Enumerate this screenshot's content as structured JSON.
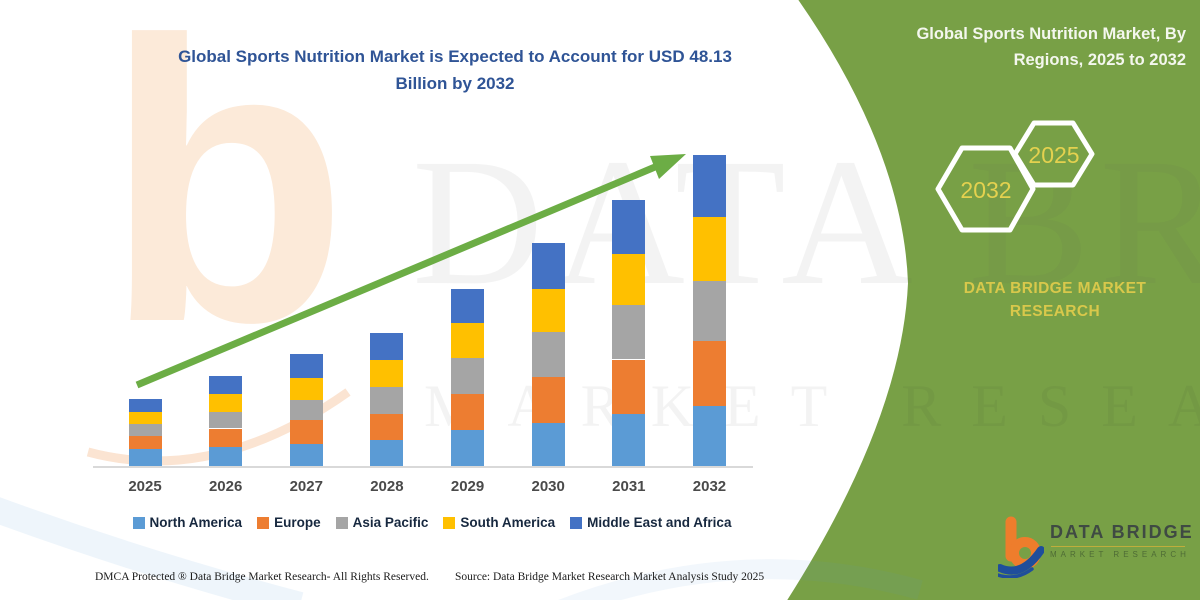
{
  "title": {
    "line1": "Global Sports Nutrition Market is Expected to Account for USD 48.13",
    "line2": "Billion by 2032"
  },
  "side_panel": {
    "title": "Global Sports Nutrition Market, By Regions, 2025 to 2032",
    "hexagon_years": [
      "2032",
      "2025"
    ],
    "brand": "DATA BRIDGE MARKET RESEARCH",
    "bg_color": "#78A046",
    "accent_text_color": "#E4D14F"
  },
  "logo": {
    "name": "DATA BRIDGE",
    "tagline": "MARKET RESEARCH"
  },
  "footer": {
    "dmca": "DMCA Protected ® Data Bridge Market Research- All Rights Reserved.",
    "source": "Source: Data Bridge Market Research Market Analysis Study 2025"
  },
  "watermark": {
    "glyph": "b",
    "line1": "DATA BRIDGE",
    "line2": "MARKET RESEARCH"
  },
  "chart_data": {
    "type": "bar",
    "stacked": true,
    "unit": "USD Billion",
    "title": "Global Sports Nutrition Market is Expected to Account for USD 48.13 Billion by 2032",
    "categories": [
      "2025",
      "2026",
      "2027",
      "2028",
      "2029",
      "2030",
      "2031",
      "2032"
    ],
    "series": [
      {
        "name": "North America",
        "color": "#5B9BD5",
        "values": [
          2.6,
          2.9,
          3.4,
          4.0,
          5.6,
          6.7,
          8.0,
          9.3
        ]
      },
      {
        "name": "Europe",
        "color": "#ED7D31",
        "values": [
          2.0,
          2.9,
          3.7,
          4.0,
          5.6,
          7.1,
          8.5,
          10.1
        ]
      },
      {
        "name": "Asia Pacific",
        "color": "#A5A5A5",
        "values": [
          1.9,
          2.5,
          3.1,
          4.2,
          5.6,
          7.0,
          8.5,
          9.3
        ]
      },
      {
        "name": "South America",
        "color": "#FFC000",
        "values": [
          1.9,
          2.8,
          3.4,
          4.2,
          5.4,
          6.7,
          7.9,
          9.9
        ]
      },
      {
        "name": "Middle East and Africa",
        "color": "#4472C4",
        "values": [
          2.0,
          2.8,
          3.7,
          4.2,
          5.3,
          7.0,
          8.4,
          9.6
        ]
      }
    ],
    "total_2032_label": "USD 48.13 Billion",
    "xlabel": "",
    "ylabel": "",
    "ylim": [
      0,
      50
    ],
    "grid": false,
    "legend_position": "bottom",
    "annotations": [
      "upward green trend arrow from 2025 to 2032"
    ],
    "arrow_color": "#6CAD45"
  }
}
